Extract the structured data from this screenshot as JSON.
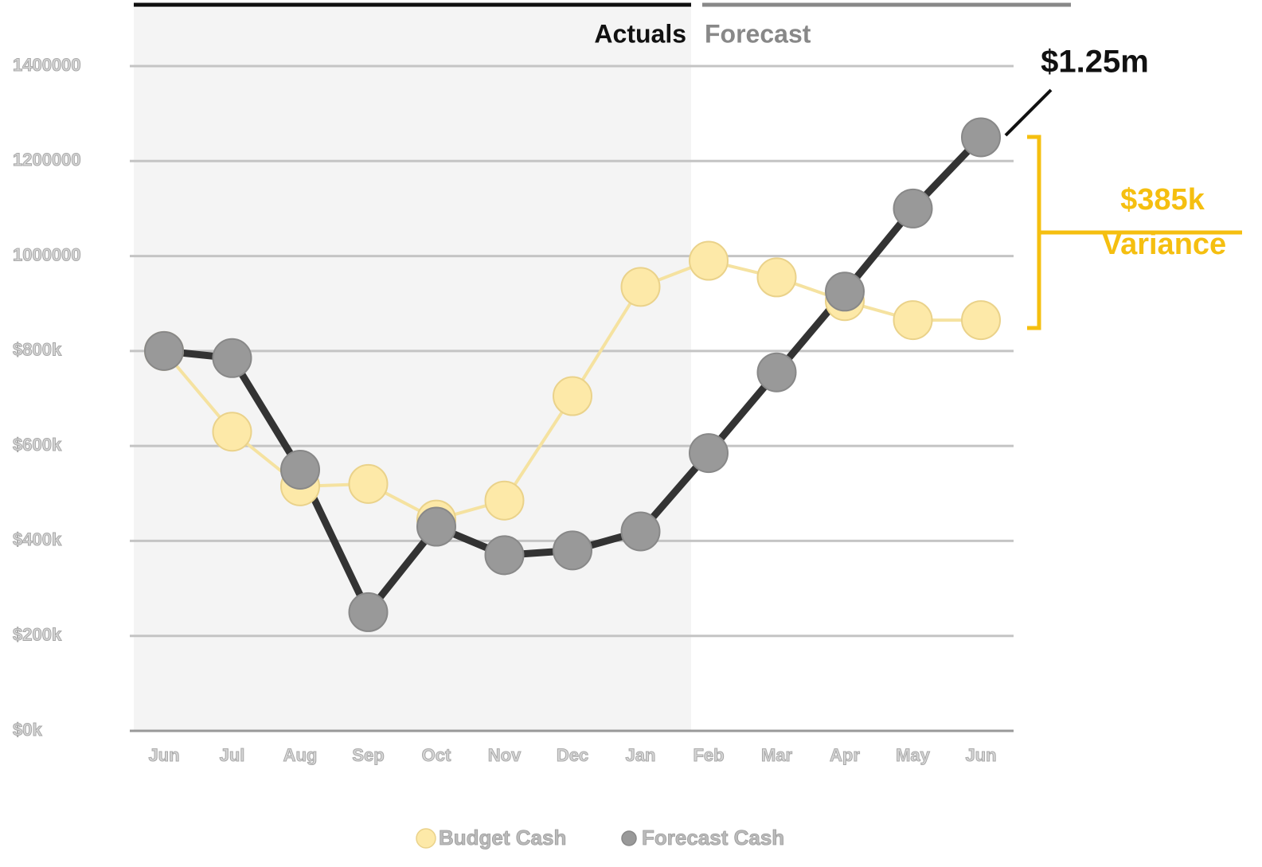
{
  "chart_data": {
    "type": "line",
    "annotations": {
      "actuals": "Actuals",
      "forecast": "Forecast",
      "end_value": "$1.25m",
      "variance_value": "$385k",
      "variance_label": "Variance"
    },
    "categories": [
      "Jun",
      "Jul",
      "Aug",
      "Sep",
      "Oct",
      "Nov",
      "Dec",
      "Jan",
      "Feb",
      "Mar",
      "Apr",
      "May",
      "Jun"
    ],
    "series": [
      {
        "name": "Budget Cash",
        "color": "#fde9a8",
        "values": [
          800000,
          630000,
          515000,
          520000,
          445000,
          485000,
          705000,
          935000,
          990000,
          955000,
          905000,
          865000,
          865000
        ]
      },
      {
        "name": "Forecast Cash",
        "color": "#999999",
        "values": [
          800000,
          785000,
          550000,
          250000,
          430000,
          370000,
          380000,
          420000,
          585000,
          755000,
          925000,
          1100000,
          1250000
        ]
      }
    ],
    "ylim": [
      0,
      1400000
    ],
    "yticks": [
      {
        "value": 0,
        "label": "$0k"
      },
      {
        "value": 200000,
        "label": "$200k"
      },
      {
        "value": 400000,
        "label": "$400k"
      },
      {
        "value": 600000,
        "label": "$600k"
      },
      {
        "value": 800000,
        "label": "$800k"
      },
      1000000,
      1200000,
      1400000
    ],
    "grid": true,
    "legend": "bottom"
  }
}
